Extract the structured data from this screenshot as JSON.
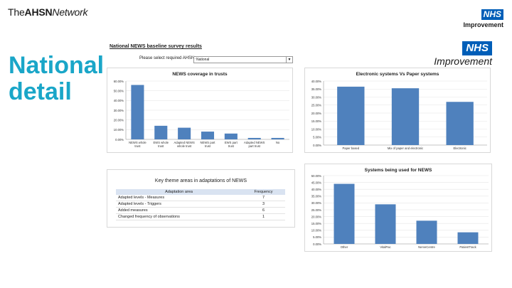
{
  "header": {
    "brand_prefix": "The",
    "brand_bold": "AHSN",
    "brand_italic": "Network",
    "nhs_logo": "NHS",
    "improvement": "Improvement",
    "title_line1": "National",
    "title_line2": "detail"
  },
  "survey": {
    "title": "National NEWS baseline survey results",
    "select_label": "Please select required AHSN:",
    "select_value": "National"
  },
  "colors": {
    "accent": "#1aa6c8",
    "bar": "#4f81bd",
    "nhs_blue": "#005eb8"
  },
  "chart_data": [
    {
      "type": "bar",
      "title": "NEWS coverage in trusts",
      "categories": [
        "NEWS whole trust",
        "EWS whole trust",
        "Adapted NEWS whole trust",
        "NEWS part trust",
        "EWS part trust",
        "Adapted NEWS part trust",
        "No"
      ],
      "values": [
        56,
        14,
        12,
        8,
        6,
        1.5,
        1.5
      ],
      "ylim": [
        0,
        60
      ],
      "yticks": [
        "0.00%",
        "10.00%",
        "20.00%",
        "30.00%",
        "40.00%",
        "50.00%",
        "60.00%"
      ],
      "grid": true
    },
    {
      "type": "bar",
      "title": "Electronic systems Vs Paper systems",
      "categories": [
        "Paper based",
        "Mix of paper and electronic",
        "Electronic"
      ],
      "values": [
        36.5,
        35.5,
        27
      ],
      "ylim": [
        0,
        40
      ],
      "yticks": [
        "0.00%",
        "5.00%",
        "10.00%",
        "15.00%",
        "20.00%",
        "25.00%",
        "30.00%",
        "35.00%",
        "40.00%"
      ],
      "grid": true
    },
    {
      "type": "bar",
      "title": "Systems being used for NEWS",
      "categories": [
        "Other",
        "VitalPac",
        "NerveCentre",
        "PatientTrack"
      ],
      "values": [
        44,
        29,
        17,
        8.5
      ],
      "ylim": [
        0,
        50
      ],
      "yticks": [
        "0.00%",
        "5.00%",
        "10.00%",
        "15.00%",
        "20.00%",
        "25.00%",
        "30.00%",
        "35.00%",
        "40.00%",
        "45.00%",
        "50.00%"
      ],
      "grid": true
    }
  ],
  "key_themes": {
    "title": "Key theme areas in adaptations of NEWS",
    "col_area": "Adaptation area",
    "col_freq": "Frequency",
    "rows": [
      {
        "area": "Adapted levels - Measures",
        "freq": "7"
      },
      {
        "area": "Adapted levels - Triggers",
        "freq": "3"
      },
      {
        "area": "Added measures",
        "freq": "6"
      },
      {
        "area": "Changed frequency of observations",
        "freq": "1"
      }
    ]
  }
}
